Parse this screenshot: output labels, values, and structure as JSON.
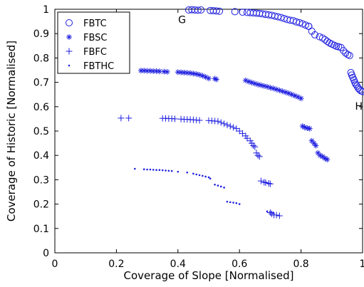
{
  "chart_data": {
    "type": "scatter",
    "title": "",
    "xlabel": "Coverage of Slope [Normalised]",
    "ylabel": "Coverage of Historic [Normalised]",
    "xlim": [
      0,
      1
    ],
    "ylim": [
      0,
      1
    ],
    "grid": false,
    "legend_position": "top-left",
    "xticks": [
      "0",
      "0.2",
      "0.4",
      "0.6",
      "0.8",
      "1"
    ],
    "yticks": [
      "0",
      "0.1",
      "0.2",
      "0.3",
      "0.4",
      "0.5",
      "0.6",
      "0.7",
      "0.8",
      "0.9",
      "1"
    ],
    "marker_color": "#1f1fe0",
    "annotations": [
      {
        "text": "G",
        "x": 0.41,
        "y": 0.995
      },
      {
        "text": "H",
        "x": 0.985,
        "y": 0.64
      }
    ],
    "series": [
      {
        "name": "FBTC",
        "marker": "circle",
        "points": [
          [
            0.435,
            0.997
          ],
          [
            0.445,
            0.998
          ],
          [
            0.455,
            0.997
          ],
          [
            0.465,
            0.996
          ],
          [
            0.475,
            0.997
          ],
          [
            0.505,
            0.995
          ],
          [
            0.515,
            0.994
          ],
          [
            0.525,
            0.993
          ],
          [
            0.535,
            0.992
          ],
          [
            0.585,
            0.99
          ],
          [
            0.61,
            0.988
          ],
          [
            0.625,
            0.987
          ],
          [
            0.635,
            0.986
          ],
          [
            0.645,
            0.985
          ],
          [
            0.655,
            0.984
          ],
          [
            0.665,
            0.983
          ],
          [
            0.675,
            0.981
          ],
          [
            0.685,
            0.979
          ],
          [
            0.695,
            0.977
          ],
          [
            0.705,
            0.975
          ],
          [
            0.715,
            0.972
          ],
          [
            0.725,
            0.969
          ],
          [
            0.735,
            0.966
          ],
          [
            0.745,
            0.962
          ],
          [
            0.755,
            0.958
          ],
          [
            0.765,
            0.955
          ],
          [
            0.775,
            0.953
          ],
          [
            0.785,
            0.948
          ],
          [
            0.795,
            0.945
          ],
          [
            0.805,
            0.94
          ],
          [
            0.815,
            0.935
          ],
          [
            0.825,
            0.93
          ],
          [
            0.825,
            0.93
          ],
          [
            0.835,
            0.91
          ],
          [
            0.845,
            0.895
          ],
          [
            0.86,
            0.887
          ],
          [
            0.87,
            0.882
          ],
          [
            0.878,
            0.875
          ],
          [
            0.885,
            0.868
          ],
          [
            0.892,
            0.862
          ],
          [
            0.9,
            0.857
          ],
          [
            0.908,
            0.852
          ],
          [
            0.915,
            0.848
          ],
          [
            0.922,
            0.846
          ],
          [
            0.93,
            0.843
          ],
          [
            0.938,
            0.83
          ],
          [
            0.945,
            0.82
          ],
          [
            0.952,
            0.814
          ],
          [
            0.958,
            0.81
          ],
          [
            0.962,
            0.74
          ],
          [
            0.965,
            0.73
          ],
          [
            0.968,
            0.72
          ],
          [
            0.972,
            0.71
          ],
          [
            0.975,
            0.7
          ],
          [
            0.978,
            0.692
          ],
          [
            0.982,
            0.685
          ],
          [
            0.986,
            0.676
          ],
          [
            0.99,
            0.67
          ],
          [
            0.995,
            0.665
          ],
          [
            1.0,
            0.662
          ]
        ]
      },
      {
        "name": "FBSC",
        "marker": "asterisk",
        "points": [
          [
            0.28,
            0.748
          ],
          [
            0.29,
            0.748
          ],
          [
            0.3,
            0.747
          ],
          [
            0.31,
            0.747
          ],
          [
            0.32,
            0.746
          ],
          [
            0.33,
            0.746
          ],
          [
            0.34,
            0.745
          ],
          [
            0.355,
            0.744
          ],
          [
            0.365,
            0.743
          ],
          [
            0.4,
            0.742
          ],
          [
            0.41,
            0.741
          ],
          [
            0.42,
            0.74
          ],
          [
            0.43,
            0.739
          ],
          [
            0.44,
            0.738
          ],
          [
            0.45,
            0.736
          ],
          [
            0.46,
            0.734
          ],
          [
            0.47,
            0.731
          ],
          [
            0.48,
            0.727
          ],
          [
            0.49,
            0.722
          ],
          [
            0.5,
            0.716
          ],
          [
            0.52,
            0.715
          ],
          [
            0.525,
            0.712
          ],
          [
            0.62,
            0.708
          ],
          [
            0.63,
            0.703
          ],
          [
            0.64,
            0.699
          ],
          [
            0.65,
            0.695
          ],
          [
            0.66,
            0.691
          ],
          [
            0.67,
            0.688
          ],
          [
            0.68,
            0.685
          ],
          [
            0.69,
            0.682
          ],
          [
            0.7,
            0.678
          ],
          [
            0.71,
            0.675
          ],
          [
            0.72,
            0.671
          ],
          [
            0.73,
            0.667
          ],
          [
            0.74,
            0.663
          ],
          [
            0.75,
            0.659
          ],
          [
            0.76,
            0.655
          ],
          [
            0.77,
            0.65
          ],
          [
            0.78,
            0.645
          ],
          [
            0.79,
            0.64
          ],
          [
            0.8,
            0.634
          ],
          [
            0.805,
            0.52
          ],
          [
            0.812,
            0.515
          ],
          [
            0.82,
            0.512
          ],
          [
            0.828,
            0.51
          ],
          [
            0.835,
            0.46
          ],
          [
            0.842,
            0.45
          ],
          [
            0.848,
            0.44
          ],
          [
            0.855,
            0.41
          ],
          [
            0.862,
            0.4
          ],
          [
            0.87,
            0.395
          ],
          [
            0.878,
            0.388
          ],
          [
            0.885,
            0.383
          ]
        ]
      },
      {
        "name": "FBFC",
        "marker": "plus",
        "points": [
          [
            0.215,
            0.553
          ],
          [
            0.24,
            0.553
          ],
          [
            0.35,
            0.552
          ],
          [
            0.36,
            0.552
          ],
          [
            0.37,
            0.551
          ],
          [
            0.38,
            0.551
          ],
          [
            0.39,
            0.55
          ],
          [
            0.41,
            0.549
          ],
          [
            0.42,
            0.548
          ],
          [
            0.43,
            0.548
          ],
          [
            0.44,
            0.547
          ],
          [
            0.45,
            0.546
          ],
          [
            0.46,
            0.545
          ],
          [
            0.47,
            0.544
          ],
          [
            0.5,
            0.543
          ],
          [
            0.51,
            0.542
          ],
          [
            0.52,
            0.541
          ],
          [
            0.53,
            0.54
          ],
          [
            0.54,
            0.535
          ],
          [
            0.55,
            0.53
          ],
          [
            0.56,
            0.525
          ],
          [
            0.57,
            0.52
          ],
          [
            0.58,
            0.515
          ],
          [
            0.59,
            0.51
          ],
          [
            0.6,
            0.5
          ],
          [
            0.61,
            0.49
          ],
          [
            0.62,
            0.48
          ],
          [
            0.625,
            0.47
          ],
          [
            0.635,
            0.46
          ],
          [
            0.64,
            0.45
          ],
          [
            0.645,
            0.44
          ],
          [
            0.65,
            0.435
          ],
          [
            0.655,
            0.41
          ],
          [
            0.66,
            0.4
          ],
          [
            0.665,
            0.395
          ],
          [
            0.67,
            0.295
          ],
          [
            0.68,
            0.29
          ],
          [
            0.685,
            0.288
          ],
          [
            0.695,
            0.285
          ],
          [
            0.7,
            0.283
          ],
          [
            0.7,
            0.165
          ],
          [
            0.705,
            0.16
          ],
          [
            0.712,
            0.155
          ],
          [
            0.72,
            0.155
          ],
          [
            0.73,
            0.152
          ]
        ]
      },
      {
        "name": "FBTHC",
        "marker": "dot",
        "points": [
          [
            0.26,
            0.345
          ],
          [
            0.29,
            0.343
          ],
          [
            0.3,
            0.342
          ],
          [
            0.31,
            0.342
          ],
          [
            0.32,
            0.341
          ],
          [
            0.33,
            0.34
          ],
          [
            0.34,
            0.34
          ],
          [
            0.35,
            0.339
          ],
          [
            0.36,
            0.338
          ],
          [
            0.37,
            0.337
          ],
          [
            0.38,
            0.336
          ],
          [
            0.4,
            0.333
          ],
          [
            0.43,
            0.33
          ],
          [
            0.45,
            0.325
          ],
          [
            0.46,
            0.322
          ],
          [
            0.47,
            0.319
          ],
          [
            0.48,
            0.316
          ],
          [
            0.49,
            0.313
          ],
          [
            0.5,
            0.31
          ],
          [
            0.505,
            0.305
          ],
          [
            0.52,
            0.28
          ],
          [
            0.53,
            0.276
          ],
          [
            0.54,
            0.272
          ],
          [
            0.55,
            0.268
          ],
          [
            0.56,
            0.21
          ],
          [
            0.57,
            0.208
          ],
          [
            0.58,
            0.206
          ],
          [
            0.59,
            0.204
          ],
          [
            0.6,
            0.2
          ],
          [
            0.69,
            0.17
          ],
          [
            0.7,
            0.168
          ],
          [
            0.71,
            0.165
          ]
        ]
      }
    ]
  }
}
